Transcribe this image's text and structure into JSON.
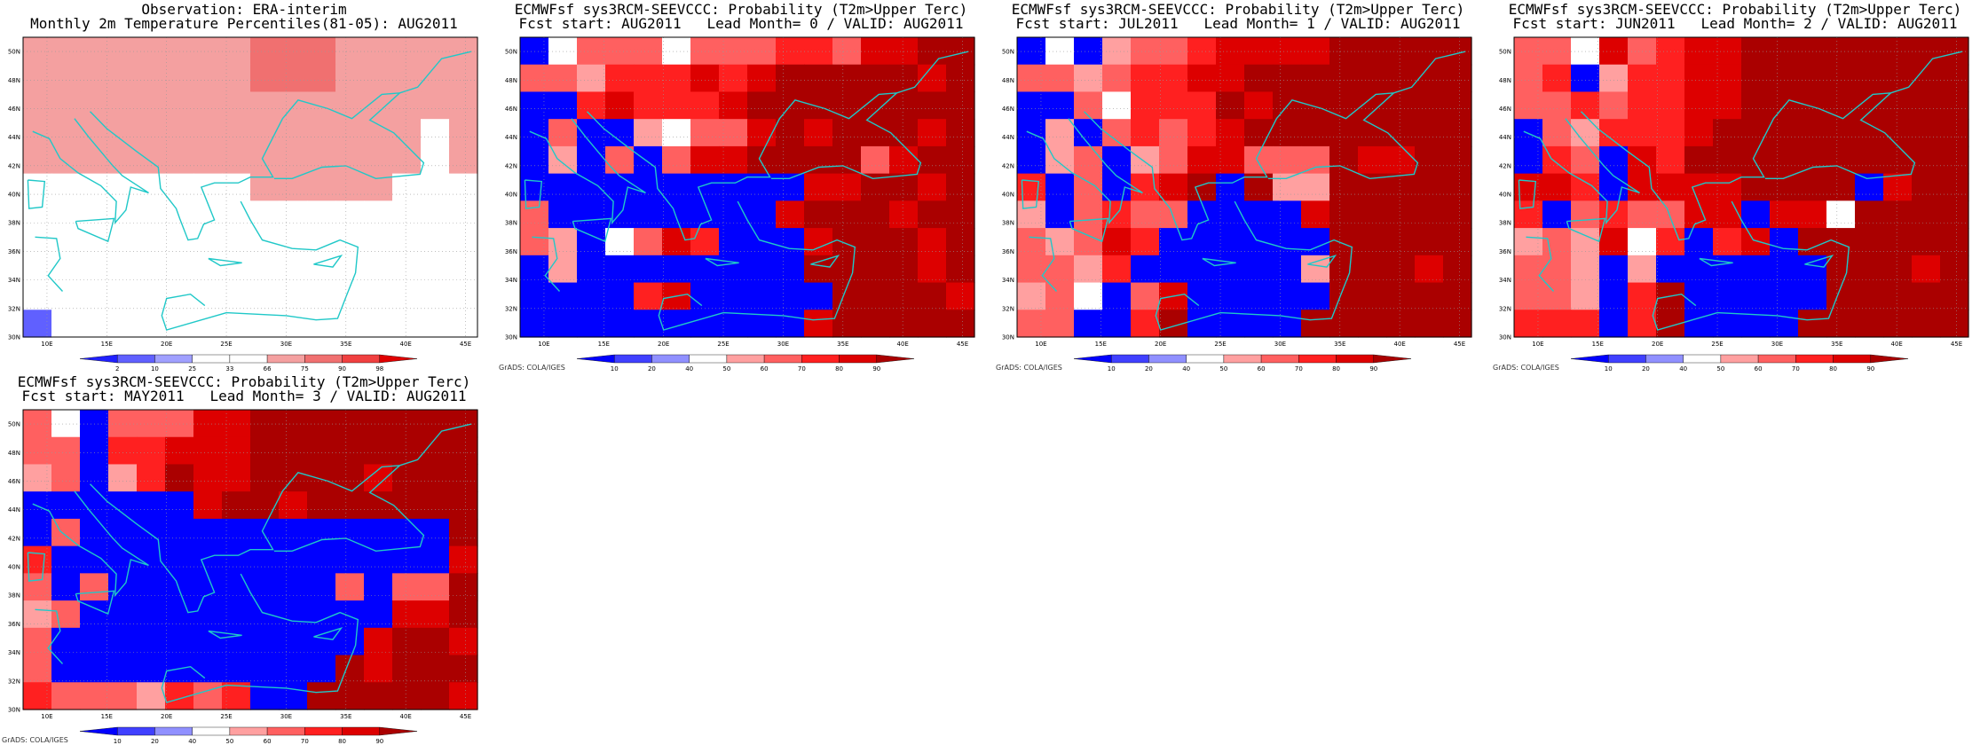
{
  "colors": {
    "coast": "#20c8c8",
    "obs_scale": [
      "#2020ff",
      "#6060ff",
      "#a0a0ff",
      "#ffffff",
      "#ffffff",
      "#f4a0a0",
      "#f07070",
      "#f04040",
      "#e00000"
    ],
    "prob_scale": [
      "#0000ff",
      "#4040ff",
      "#9090ff",
      "#ffffff",
      "#ffa0a0",
      "#ff6060",
      "#ff2020",
      "#dd0000",
      "#aa0000"
    ]
  },
  "chart_data": [
    {
      "type": "heatmap",
      "title": "Observation: ERA-interim",
      "subtitle": "Monthly 2m Temperature Percentiles(81-05): AUG2011",
      "credit": "",
      "x_tick_labels": [
        "10E",
        "15E",
        "20E",
        "25E",
        "30E",
        "35E",
        "40E",
        "45E"
      ],
      "y_tick_labels": [
        "30N",
        "32N",
        "34N",
        "36N",
        "38N",
        "40N",
        "42N",
        "44N",
        "46N",
        "48N",
        "50N"
      ],
      "xlim": [
        8,
        46
      ],
      "ylim": [
        30,
        51
      ],
      "colorbar_labels": [
        "2",
        "10",
        "25",
        "33",
        "66",
        "75",
        "90",
        "98"
      ],
      "grid": [
        [
          5,
          5,
          5,
          5,
          5,
          5,
          5,
          5,
          6,
          6,
          6,
          5,
          5,
          5,
          5,
          5
        ],
        [
          5,
          5,
          5,
          5,
          5,
          5,
          5,
          5,
          6,
          6,
          6,
          5,
          5,
          5,
          5,
          5
        ],
        [
          5,
          5,
          5,
          5,
          5,
          5,
          5,
          5,
          5,
          5,
          5,
          5,
          5,
          5,
          5,
          5
        ],
        [
          5,
          5,
          5,
          5,
          5,
          5,
          5,
          5,
          5,
          5,
          5,
          5,
          5,
          5,
          3,
          5
        ],
        [
          5,
          5,
          5,
          5,
          5,
          5,
          5,
          5,
          5,
          5,
          5,
          5,
          5,
          5,
          3,
          5
        ],
        [
          3,
          3,
          3,
          3,
          3,
          3,
          3,
          3,
          5,
          5,
          5,
          5,
          5,
          3,
          3,
          3
        ],
        [
          3,
          3,
          3,
          3,
          3,
          3,
          3,
          3,
          3,
          3,
          3,
          3,
          3,
          3,
          3,
          3
        ],
        [
          3,
          3,
          3,
          3,
          3,
          3,
          3,
          3,
          3,
          3,
          3,
          3,
          3,
          3,
          3,
          3
        ],
        [
          3,
          3,
          3,
          3,
          3,
          3,
          3,
          3,
          3,
          3,
          3,
          3,
          3,
          3,
          3,
          3
        ],
        [
          3,
          3,
          3,
          3,
          3,
          3,
          3,
          3,
          3,
          3,
          3,
          3,
          3,
          3,
          3,
          3
        ],
        [
          1,
          3,
          3,
          3,
          3,
          3,
          3,
          3,
          3,
          3,
          3,
          3,
          3,
          3,
          3,
          3
        ]
      ]
    },
    {
      "type": "heatmap",
      "title": "ECMWFsf sys3RCM-SEEVCCC: Probability (T2m>Upper Terc)",
      "subtitle": "Fcst start: AUG2011   Lead Month= 0 / VALID: AUG2011",
      "credit": "GrADS: COLA/IGES",
      "x_tick_labels": [
        "10E",
        "15E",
        "20E",
        "25E",
        "30E",
        "35E",
        "40E",
        "45E"
      ],
      "y_tick_labels": [
        "30N",
        "32N",
        "34N",
        "36N",
        "38N",
        "40N",
        "42N",
        "44N",
        "46N",
        "48N",
        "50N"
      ],
      "xlim": [
        8,
        46
      ],
      "ylim": [
        30,
        51
      ],
      "colorbar_labels": [
        "10",
        "20",
        "40",
        "50",
        "60",
        "70",
        "80",
        "90"
      ],
      "grid": [
        [
          0,
          3,
          5,
          5,
          5,
          3,
          5,
          5,
          5,
          6,
          6,
          5,
          7,
          7,
          8,
          8
        ],
        [
          5,
          5,
          4,
          6,
          6,
          6,
          7,
          6,
          7,
          8,
          8,
          8,
          8,
          8,
          7,
          8
        ],
        [
          0,
          0,
          6,
          7,
          6,
          6,
          6,
          7,
          8,
          8,
          8,
          8,
          8,
          8,
          8,
          8
        ],
        [
          0,
          5,
          0,
          0,
          4,
          3,
          5,
          5,
          7,
          8,
          7,
          8,
          8,
          8,
          7,
          8
        ],
        [
          0,
          4,
          0,
          5,
          0,
          5,
          7,
          7,
          8,
          8,
          8,
          8,
          5,
          7,
          8,
          8
        ],
        [
          0,
          0,
          0,
          0,
          0,
          0,
          0,
          0,
          0,
          0,
          7,
          7,
          8,
          8,
          7,
          8
        ],
        [
          5,
          0,
          0,
          0,
          0,
          0,
          0,
          0,
          0,
          7,
          8,
          8,
          8,
          7,
          8,
          8
        ],
        [
          5,
          4,
          0,
          3,
          5,
          7,
          6,
          0,
          0,
          0,
          7,
          8,
          8,
          8,
          7,
          8
        ],
        [
          0,
          4,
          0,
          0,
          0,
          0,
          0,
          0,
          0,
          0,
          8,
          8,
          8,
          8,
          7,
          8
        ],
        [
          0,
          0,
          0,
          0,
          6,
          7,
          0,
          0,
          0,
          0,
          0,
          8,
          8,
          8,
          8,
          7
        ],
        [
          0,
          0,
          0,
          0,
          0,
          0,
          0,
          0,
          0,
          0,
          7,
          8,
          8,
          8,
          8,
          8
        ]
      ]
    },
    {
      "type": "heatmap",
      "title": "ECMWFsf sys3RCM-SEEVCCC: Probability (T2m>Upper Terc)",
      "subtitle": "Fcst start: JUL2011   Lead Month= 1 / VALID: AUG2011",
      "credit": "GrADS: COLA/IGES",
      "x_tick_labels": [
        "10E",
        "15E",
        "20E",
        "25E",
        "30E",
        "35E",
        "40E",
        "45E"
      ],
      "y_tick_labels": [
        "30N",
        "32N",
        "34N",
        "36N",
        "38N",
        "40N",
        "42N",
        "44N",
        "46N",
        "48N",
        "50N"
      ],
      "xlim": [
        8,
        46
      ],
      "ylim": [
        30,
        51
      ],
      "colorbar_labels": [
        "10",
        "20",
        "40",
        "50",
        "60",
        "70",
        "80",
        "90"
      ],
      "grid": [
        [
          0,
          3,
          0,
          4,
          5,
          5,
          6,
          7,
          7,
          7,
          7,
          8,
          8,
          8,
          8,
          8
        ],
        [
          5,
          5,
          4,
          5,
          6,
          6,
          7,
          7,
          8,
          8,
          8,
          8,
          8,
          8,
          8,
          8
        ],
        [
          0,
          0,
          5,
          3,
          6,
          6,
          6,
          8,
          7,
          8,
          8,
          8,
          8,
          8,
          8,
          8
        ],
        [
          0,
          4,
          0,
          5,
          6,
          5,
          6,
          7,
          8,
          8,
          8,
          8,
          8,
          8,
          8,
          8
        ],
        [
          0,
          4,
          5,
          0,
          4,
          5,
          7,
          7,
          5,
          5,
          5,
          8,
          7,
          7,
          8,
          8
        ],
        [
          6,
          0,
          5,
          0,
          6,
          7,
          8,
          0,
          8,
          4,
          4,
          8,
          8,
          8,
          8,
          8
        ],
        [
          4,
          0,
          5,
          6,
          5,
          5,
          0,
          0,
          0,
          0,
          7,
          8,
          8,
          8,
          8,
          8
        ],
        [
          5,
          4,
          5,
          7,
          6,
          0,
          0,
          0,
          0,
          0,
          0,
          8,
          8,
          8,
          8,
          8
        ],
        [
          5,
          5,
          4,
          6,
          0,
          0,
          0,
          0,
          0,
          0,
          4,
          8,
          8,
          8,
          7,
          8
        ],
        [
          4,
          5,
          3,
          0,
          5,
          7,
          0,
          0,
          0,
          0,
          0,
          8,
          8,
          8,
          8,
          8
        ],
        [
          5,
          5,
          0,
          0,
          6,
          8,
          0,
          0,
          0,
          0,
          8,
          8,
          8,
          8,
          8,
          8
        ]
      ]
    },
    {
      "type": "heatmap",
      "title": "ECMWFsf sys3RCM-SEEVCCC: Probability (T2m>Upper Terc)",
      "subtitle": "Fcst start: JUN2011   Lead Month= 2 / VALID: AUG2011",
      "credit": "GrADS: COLA/IGES",
      "x_tick_labels": [
        "10E",
        "15E",
        "20E",
        "25E",
        "30E",
        "35E",
        "40E",
        "45E"
      ],
      "y_tick_labels": [
        "30N",
        "32N",
        "34N",
        "36N",
        "38N",
        "40N",
        "42N",
        "44N",
        "46N",
        "48N",
        "50N"
      ],
      "xlim": [
        8,
        46
      ],
      "ylim": [
        30,
        51
      ],
      "colorbar_labels": [
        "10",
        "20",
        "40",
        "50",
        "60",
        "70",
        "80",
        "90"
      ],
      "grid": [
        [
          5,
          5,
          3,
          7,
          5,
          6,
          7,
          7,
          8,
          8,
          8,
          8,
          8,
          8,
          8,
          8
        ],
        [
          5,
          6,
          0,
          4,
          6,
          6,
          7,
          7,
          8,
          8,
          8,
          8,
          8,
          8,
          8,
          8
        ],
        [
          5,
          5,
          6,
          5,
          6,
          6,
          7,
          7,
          8,
          8,
          8,
          8,
          8,
          8,
          8,
          8
        ],
        [
          0,
          5,
          4,
          6,
          6,
          6,
          7,
          8,
          8,
          8,
          8,
          8,
          8,
          8,
          8,
          8
        ],
        [
          0,
          6,
          5,
          0,
          7,
          6,
          8,
          8,
          8,
          8,
          8,
          8,
          8,
          8,
          8,
          8
        ],
        [
          7,
          7,
          6,
          0,
          7,
          7,
          7,
          7,
          8,
          8,
          8,
          8,
          0,
          7,
          8,
          8
        ],
        [
          6,
          0,
          5,
          6,
          5,
          5,
          7,
          7,
          0,
          7,
          7,
          3,
          8,
          8,
          8,
          8
        ],
        [
          4,
          5,
          4,
          7,
          3,
          6,
          0,
          6,
          7,
          0,
          8,
          8,
          8,
          8,
          8,
          8
        ],
        [
          5,
          5,
          4,
          0,
          4,
          0,
          0,
          0,
          0,
          0,
          0,
          8,
          8,
          8,
          7,
          8
        ],
        [
          5,
          5,
          4,
          0,
          6,
          8,
          0,
          0,
          0,
          0,
          0,
          8,
          8,
          8,
          8,
          8
        ],
        [
          6,
          6,
          6,
          0,
          6,
          8,
          0,
          0,
          0,
          0,
          8,
          8,
          8,
          8,
          8,
          8
        ]
      ]
    },
    {
      "type": "heatmap",
      "title": "ECMWFsf sys3RCM-SEEVCCC: Probability (T2m>Upper Terc)",
      "subtitle": "Fcst start: MAY2011   Lead Month= 3 / VALID: AUG2011",
      "credit": "GrADS: COLA/IGES",
      "x_tick_labels": [
        "10E",
        "15E",
        "20E",
        "25E",
        "30E",
        "35E",
        "40E",
        "45E"
      ],
      "y_tick_labels": [
        "30N",
        "32N",
        "34N",
        "36N",
        "38N",
        "40N",
        "42N",
        "44N",
        "46N",
        "48N",
        "50N"
      ],
      "xlim": [
        8,
        46
      ],
      "ylim": [
        30,
        51
      ],
      "colorbar_labels": [
        "10",
        "20",
        "40",
        "50",
        "60",
        "70",
        "80",
        "90"
      ],
      "grid": [
        [
          5,
          3,
          0,
          5,
          5,
          5,
          7,
          7,
          8,
          8,
          8,
          8,
          8,
          8,
          8,
          8
        ],
        [
          5,
          5,
          0,
          6,
          6,
          7,
          7,
          7,
          8,
          8,
          8,
          8,
          8,
          8,
          8,
          8
        ],
        [
          4,
          5,
          0,
          4,
          6,
          8,
          7,
          7,
          8,
          8,
          8,
          8,
          7,
          8,
          8,
          8
        ],
        [
          0,
          0,
          0,
          0,
          0,
          0,
          7,
          8,
          8,
          7,
          8,
          8,
          8,
          8,
          8,
          8
        ],
        [
          0,
          5,
          0,
          0,
          0,
          0,
          0,
          0,
          0,
          0,
          0,
          0,
          0,
          0,
          0,
          8
        ],
        [
          6,
          0,
          0,
          0,
          0,
          0,
          0,
          0,
          0,
          0,
          0,
          0,
          0,
          0,
          0,
          7
        ],
        [
          5,
          0,
          5,
          0,
          0,
          0,
          0,
          0,
          0,
          0,
          0,
          5,
          0,
          5,
          5,
          8
        ],
        [
          4,
          5,
          0,
          0,
          0,
          0,
          0,
          0,
          0,
          0,
          0,
          0,
          0,
          7,
          7,
          8
        ],
        [
          5,
          0,
          0,
          0,
          0,
          0,
          0,
          0,
          0,
          0,
          0,
          0,
          7,
          8,
          8,
          7
        ],
        [
          5,
          0,
          0,
          0,
          0,
          0,
          0,
          0,
          0,
          0,
          0,
          8,
          7,
          8,
          8,
          8
        ],
        [
          6,
          5,
          5,
          5,
          4,
          6,
          5,
          6,
          0,
          0,
          8,
          8,
          8,
          8,
          8,
          7
        ]
      ]
    }
  ]
}
